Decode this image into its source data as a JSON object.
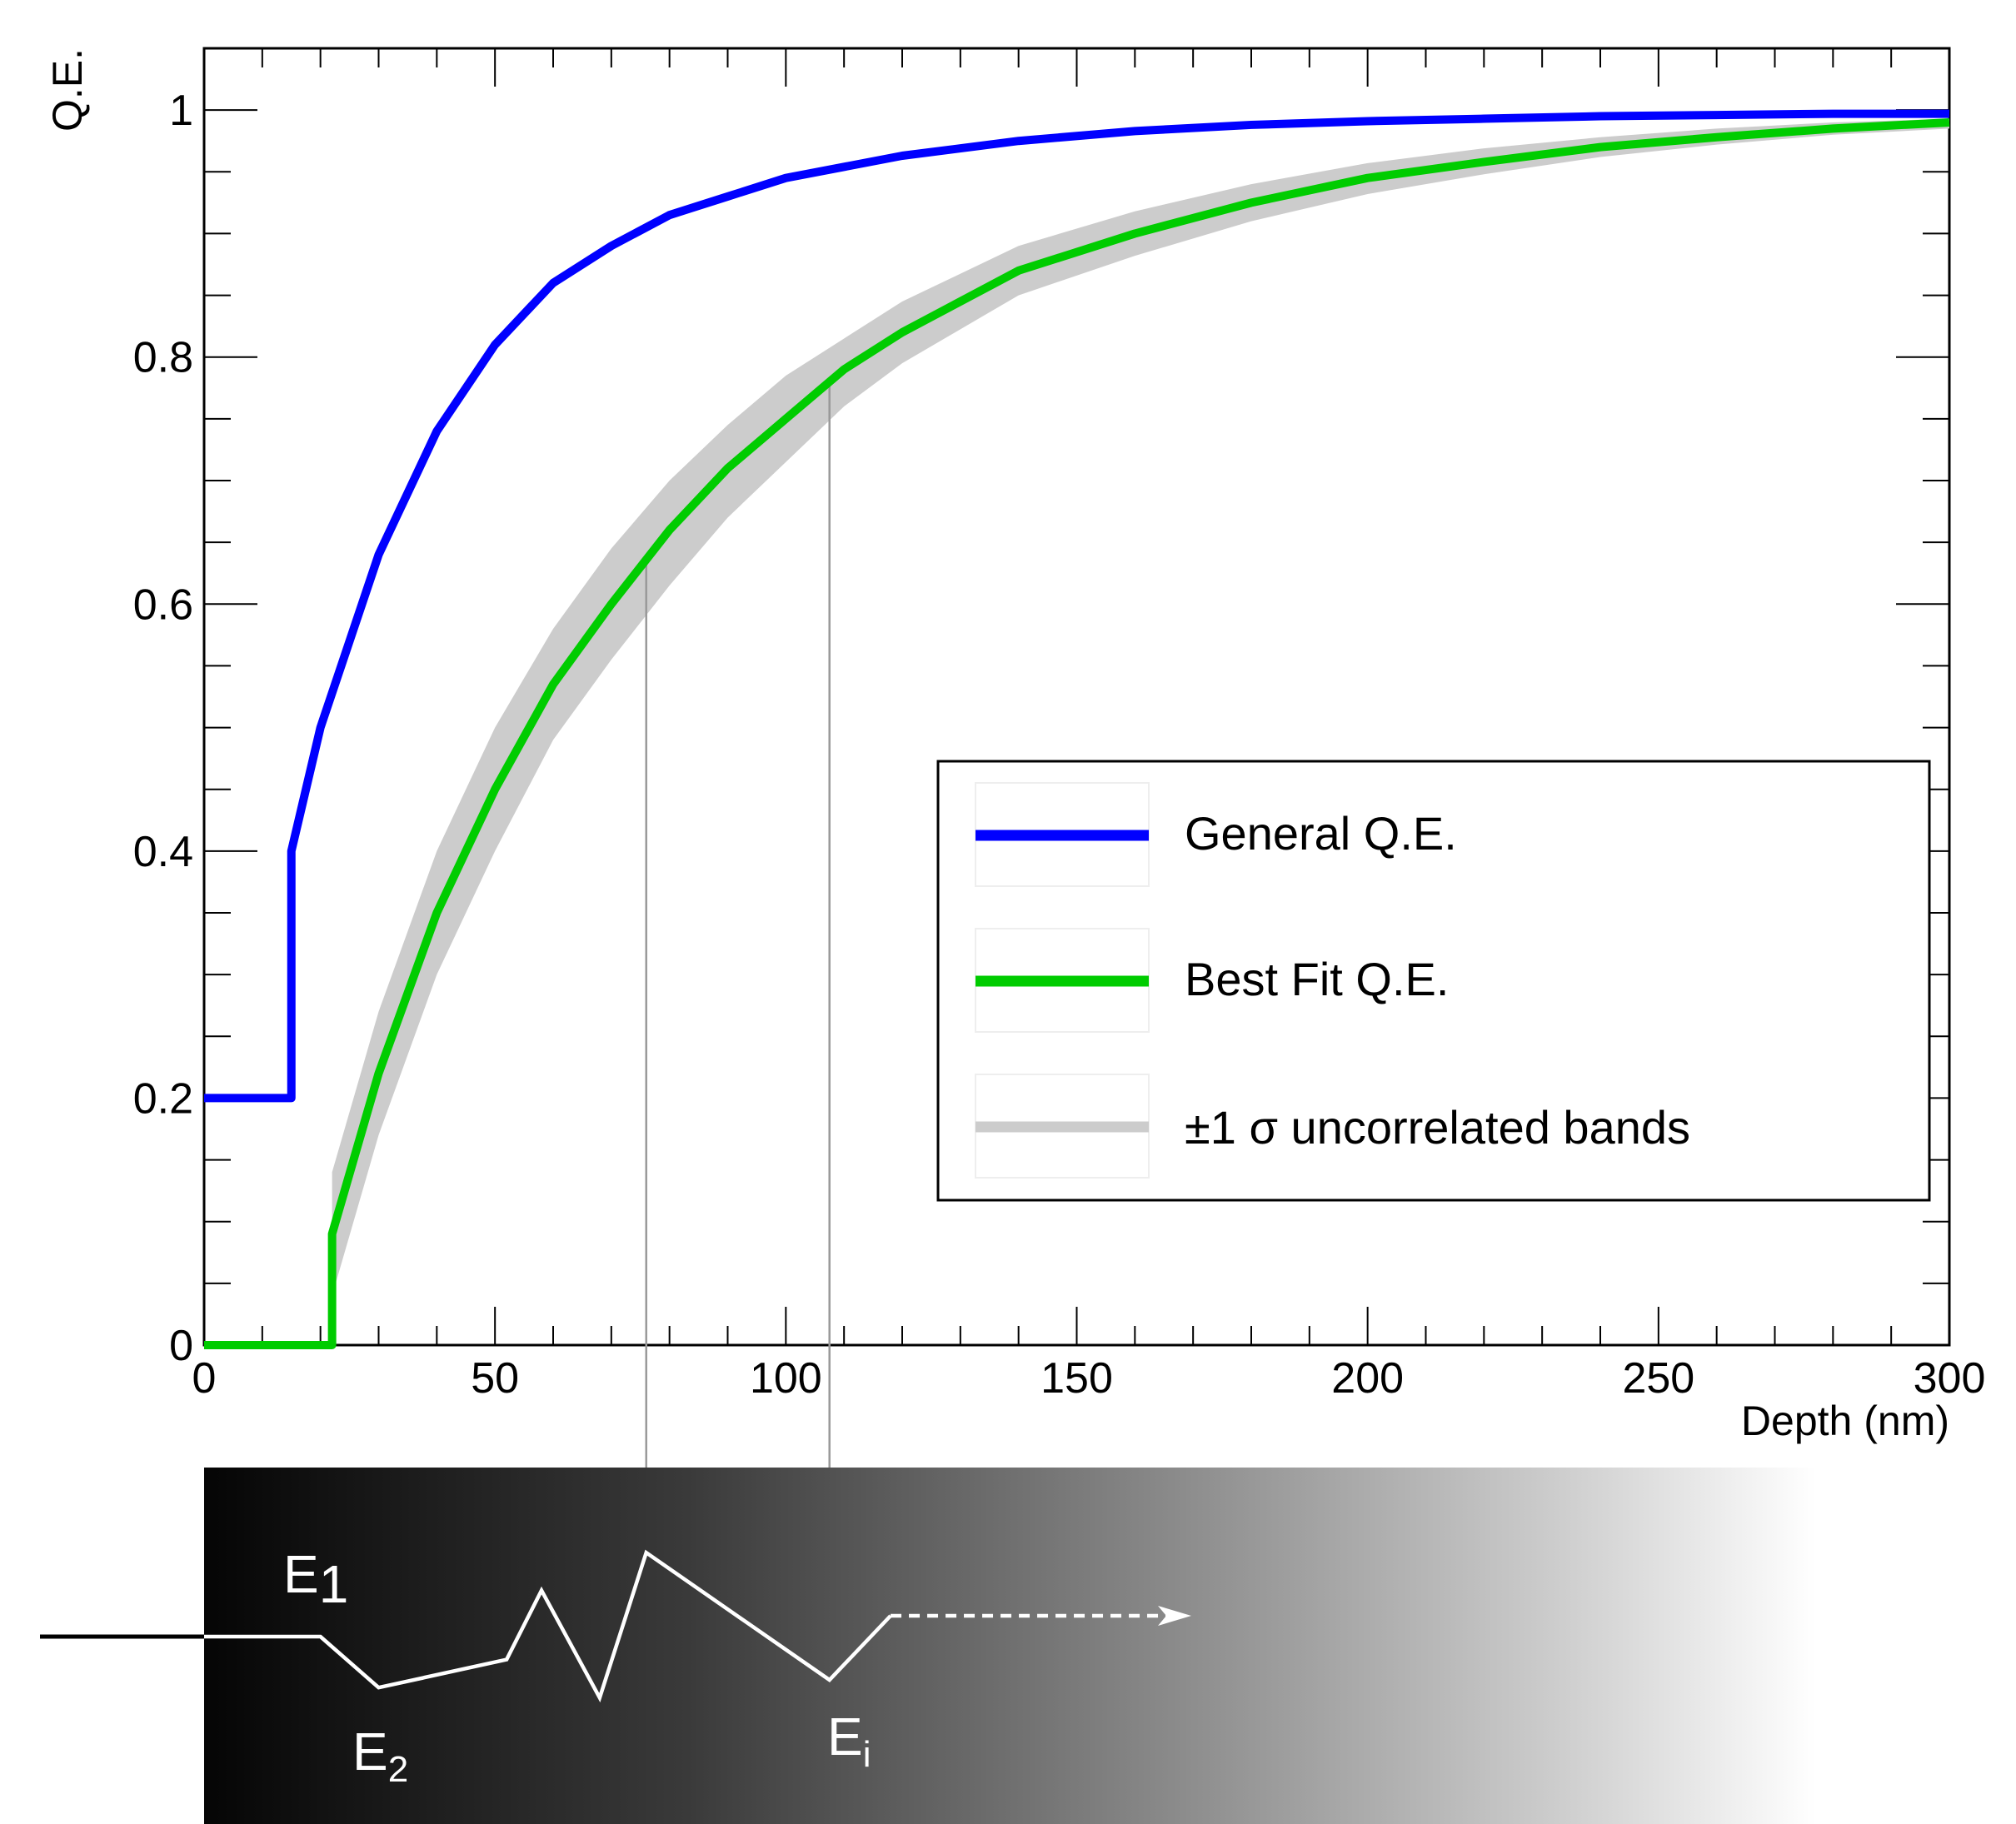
{
  "chart_data": {
    "type": "line",
    "title": "",
    "xlabel": "Depth (nm)",
    "ylabel": "Q.E.",
    "xlim": [
      0,
      300
    ],
    "ylim": [
      0,
      1.05
    ],
    "x_ticks": [
      0,
      50,
      100,
      150,
      200,
      250,
      300
    ],
    "y_ticks": [
      0,
      0.2,
      0.4,
      0.6,
      0.8,
      1
    ],
    "x_tick_labels": [
      "0",
      "50",
      "100",
      "150",
      "200",
      "250",
      "300"
    ],
    "y_tick_labels": [
      "0",
      "0.2",
      "0.4",
      "0.6",
      "0.8",
      "1"
    ],
    "grid": false,
    "legend_position": "right-center",
    "series": [
      {
        "name": "General Q.E.",
        "color": "#0000ff",
        "x": [
          0,
          15,
          15,
          20,
          30,
          40,
          50,
          60,
          70,
          80,
          90,
          100,
          120,
          140,
          160,
          180,
          200,
          220,
          240,
          260,
          280,
          300
        ],
        "y": [
          0.2,
          0.2,
          0.4,
          0.5,
          0.64,
          0.74,
          0.81,
          0.86,
          0.89,
          0.915,
          0.93,
          0.945,
          0.963,
          0.975,
          0.983,
          0.988,
          0.991,
          0.993,
          0.995,
          0.996,
          0.997,
          0.997
        ]
      },
      {
        "name": "Best Fit Q.E.",
        "color": "#00cc00",
        "x": [
          0,
          22,
          22,
          30,
          40,
          50,
          60,
          70,
          80,
          90,
          100,
          110,
          120,
          140,
          160,
          180,
          200,
          220,
          240,
          260,
          280,
          300
        ],
        "y": [
          0,
          0,
          0.09,
          0.22,
          0.35,
          0.45,
          0.535,
          0.6,
          0.66,
          0.71,
          0.75,
          0.79,
          0.82,
          0.87,
          0.9,
          0.925,
          0.945,
          0.958,
          0.97,
          0.978,
          0.985,
          0.99
        ]
      },
      {
        "name": "±1 σ uncorrelated bands",
        "color": "#cccccc",
        "x": [
          22,
          30,
          40,
          50,
          60,
          70,
          80,
          90,
          100,
          110,
          120,
          140,
          160,
          180,
          200,
          220,
          240,
          260,
          280,
          300
        ],
        "upper": [
          0.14,
          0.27,
          0.4,
          0.5,
          0.58,
          0.645,
          0.7,
          0.745,
          0.785,
          0.815,
          0.845,
          0.89,
          0.918,
          0.94,
          0.957,
          0.969,
          0.978,
          0.985,
          0.99,
          0.993
        ],
        "lower": [
          0.04,
          0.17,
          0.3,
          0.4,
          0.49,
          0.555,
          0.615,
          0.67,
          0.715,
          0.76,
          0.795,
          0.85,
          0.882,
          0.91,
          0.932,
          0.948,
          0.962,
          0.972,
          0.98,
          0.985
        ]
      }
    ],
    "guide_lines_x": [
      76,
      107.5
    ],
    "annotations": {
      "energy_labels": [
        {
          "main": "E",
          "sub": "1"
        },
        {
          "main": "E",
          "sub": "2"
        },
        {
          "main": "E",
          "sub": "i"
        }
      ],
      "energy_path_depth": [
        0,
        20,
        30,
        52,
        58,
        68,
        76,
        107.5,
        118
      ],
      "energy_path_level": [
        0,
        0,
        -1,
        -0.45,
        0.55,
        -1.2,
        1,
        -0.85,
        0
      ]
    }
  }
}
